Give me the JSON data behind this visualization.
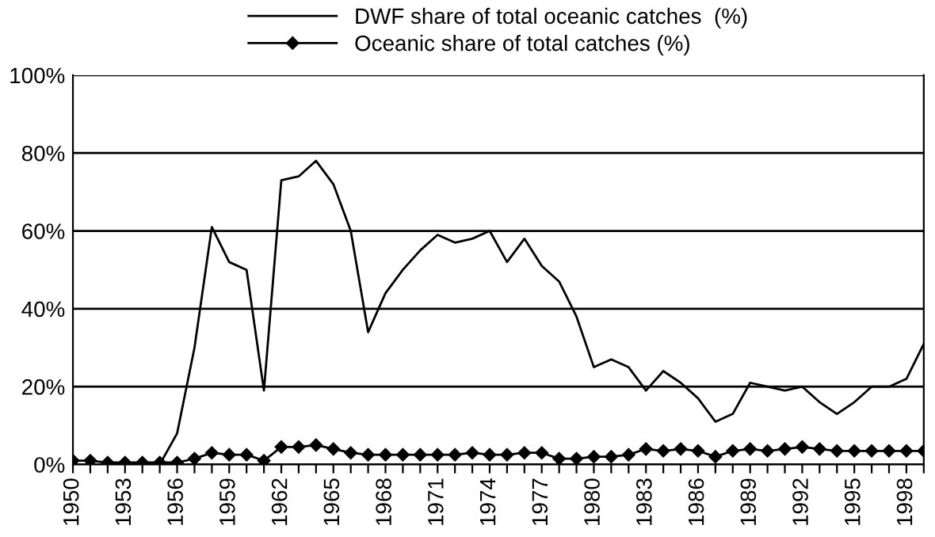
{
  "chart_data": {
    "type": "line",
    "categories": [
      "1950",
      null,
      null,
      "1953",
      null,
      null,
      "1956",
      null,
      null,
      "1959",
      null,
      null,
      "1962",
      null,
      null,
      "1965",
      null,
      null,
      "1968",
      null,
      null,
      "1971",
      null,
      null,
      "1974",
      null,
      null,
      "1977",
      null,
      null,
      "1980",
      null,
      null,
      "1983",
      null,
      null,
      "1986",
      null,
      null,
      "1989",
      null,
      null,
      "1992",
      null,
      null,
      "1995",
      null,
      null,
      "1998",
      null
    ],
    "series": [
      {
        "name": "DWF share of total oceanic catches  (%)",
        "color": "#000000",
        "marker": "none",
        "values": [
          0,
          0,
          0,
          0,
          0,
          0,
          8,
          30,
          61,
          52,
          50,
          19,
          73,
          74,
          78,
          72,
          60,
          34,
          44,
          50,
          55,
          59,
          57,
          58,
          60,
          52,
          58,
          51,
          47,
          38,
          25,
          27,
          25,
          19,
          24,
          21,
          17,
          11,
          13,
          21,
          20,
          19,
          20,
          16,
          13,
          16,
          20,
          20,
          22,
          31
        ]
      },
      {
        "name": "Oceanic share of total catches (%)",
        "color": "#000000",
        "marker": "diamond",
        "values": [
          1,
          1,
          0.5,
          0.5,
          0.5,
          0.5,
          0.5,
          1.5,
          3,
          2.5,
          2.5,
          1,
          4.5,
          4.5,
          5,
          4,
          3,
          2.5,
          2.5,
          2.5,
          2.5,
          2.5,
          2.5,
          3,
          2.5,
          2.5,
          3,
          3,
          1.5,
          1.5,
          2,
          2,
          2.5,
          4,
          3.5,
          4,
          3.5,
          2,
          3.5,
          4,
          3.5,
          4,
          4.5,
          4,
          3.5,
          3.5,
          3.5,
          3.5,
          3.5,
          3.5
        ]
      }
    ],
    "ylim": [
      0,
      100
    ],
    "yticks": [
      {
        "value": 0,
        "label": "0%"
      },
      {
        "value": 20,
        "label": "20%"
      },
      {
        "value": 40,
        "label": "40%"
      },
      {
        "value": 60,
        "label": "60%"
      },
      {
        "value": 80,
        "label": "80%"
      },
      {
        "value": 100,
        "label": "100%"
      }
    ],
    "grid": "y",
    "legend": "top",
    "line_style": "solid"
  }
}
